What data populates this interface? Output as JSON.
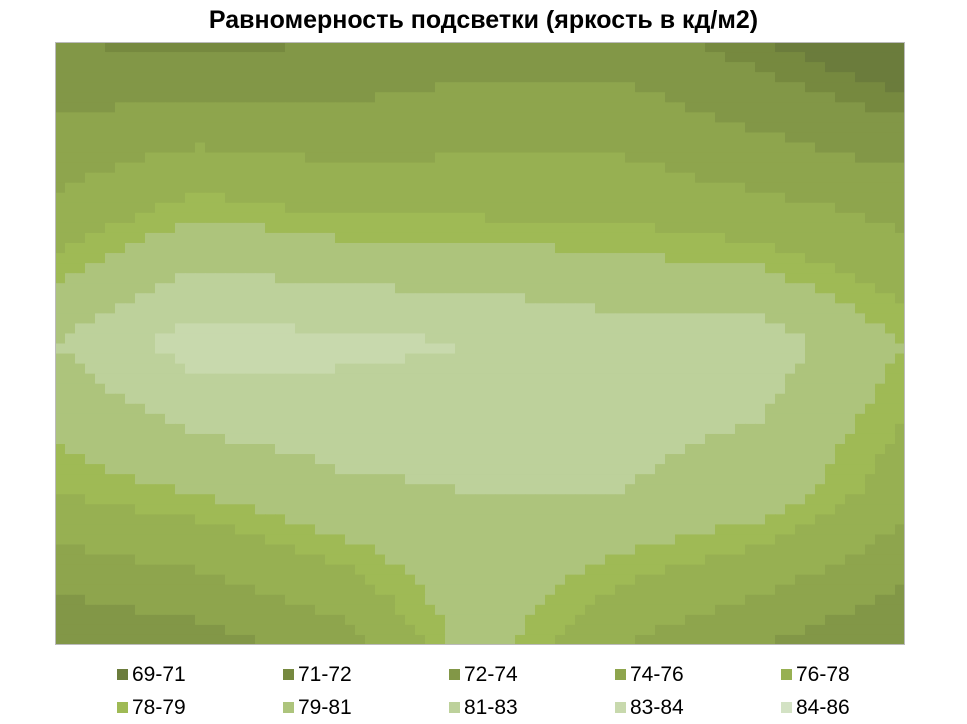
{
  "chart_data": {
    "type": "heatmap",
    "subtype": "contour-surface",
    "title": "Равномерность подсветки (яркость в кд/м2)",
    "xlabel": "",
    "ylabel": "",
    "grid": false,
    "legend_position": "bottom",
    "bands": [
      {
        "label": "69-71",
        "min": 69,
        "max": 71,
        "color": "#6b7c3c"
      },
      {
        "label": "71-72",
        "min": 71,
        "max": 72,
        "color": "#76893f"
      },
      {
        "label": "72-74",
        "min": 72,
        "max": 74,
        "color": "#829747"
      },
      {
        "label": "74-76",
        "min": 74,
        "max": 76,
        "color": "#8ea54d"
      },
      {
        "label": "76-78",
        "min": 76,
        "max": 78,
        "color": "#97b052"
      },
      {
        "label": "78-79",
        "min": 78,
        "max": 79,
        "color": "#9fba55"
      },
      {
        "label": "79-81",
        "min": 79,
        "max": 81,
        "color": "#adc47c"
      },
      {
        "label": "81-83",
        "min": 81,
        "max": 83,
        "color": "#bdd19b"
      },
      {
        "label": "83-84",
        "min": 83,
        "max": 84,
        "color": "#c8d9ad"
      },
      {
        "label": "84-86",
        "min": 84,
        "max": 86,
        "color": "#d3e2c4"
      }
    ],
    "values": [
      [
        72,
        71.5,
        72,
        73,
        73,
        71,
        69
      ],
      [
        76,
        78,
        77,
        77,
        77,
        76,
        75
      ],
      [
        81,
        84,
        83.5,
        83,
        82,
        82,
        79
      ],
      [
        78,
        79,
        80.5,
        81,
        81,
        80,
        77
      ],
      [
        72,
        73,
        75,
        80,
        76,
        74,
        72
      ]
    ]
  }
}
